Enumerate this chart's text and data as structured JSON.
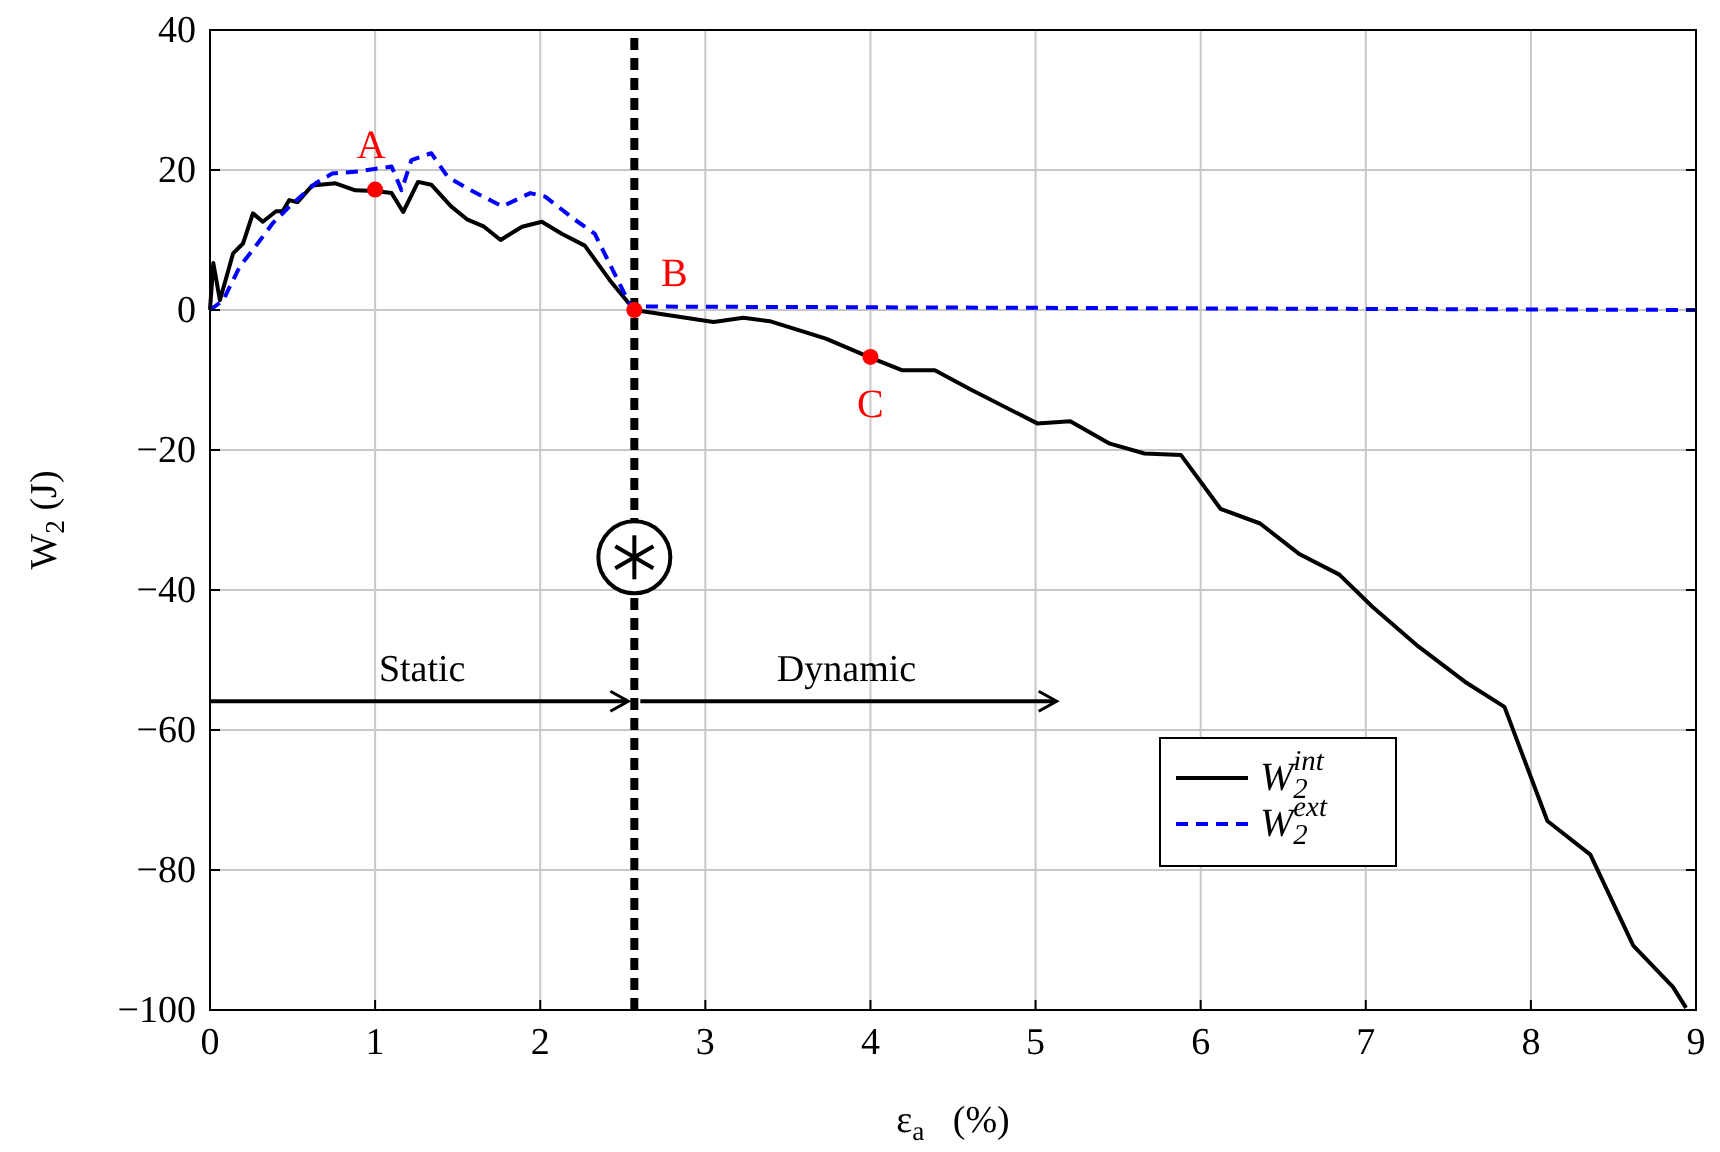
{
  "chart_data": {
    "type": "line",
    "xlabel": "ε$_{a}$   (%)",
    "ylabel": "W$_{2}$ (J)",
    "xlim": [
      0,
      9
    ],
    "xticks": [
      0,
      1,
      2,
      3,
      4,
      5,
      6,
      7,
      8,
      9
    ],
    "ylim": [
      -100,
      40
    ],
    "yticks": [
      {
        "value": -100,
        "label": "−100"
      },
      {
        "value": -80,
        "label": "−80"
      },
      {
        "value": -60,
        "label": "−60"
      },
      {
        "value": -40,
        "label": "−40"
      },
      {
        "value": -20,
        "label": "−20"
      },
      0,
      20,
      40
    ],
    "grid": true,
    "legend": "bottom right",
    "marker": "none",
    "series": [
      {
        "name": "W$_{2}$$^{int}$",
        "color": "#000000",
        "line_style": "solid",
        "x": [
          0,
          0.02,
          0.06,
          0.14,
          0.2,
          0.26,
          0.32,
          0.4,
          0.44,
          0.48,
          0.53,
          0.62,
          0.76,
          0.88,
          1.0,
          1.1,
          1.17,
          1.26,
          1.34,
          1.46,
          1.56,
          1.66,
          1.76,
          1.89,
          2.01,
          2.13,
          2.27,
          2.42,
          2.57,
          3.05,
          3.23,
          3.39,
          3.73,
          4.0,
          4.19,
          4.39,
          4.61,
          5.01,
          5.21,
          5.45,
          5.66,
          5.88,
          6.12,
          6.36,
          6.6,
          6.84,
          7.04,
          7.32,
          7.6,
          7.84,
          8.1,
          8.36,
          8.62,
          8.86,
          8.94
        ],
        "values": [
          0,
          6.7,
          1.4,
          8.1,
          9.5,
          13.8,
          12.6,
          14.1,
          14.1,
          15.7,
          15.4,
          17.8,
          18.1,
          17.1,
          17,
          16.7,
          14,
          18.3,
          17.9,
          14.8,
          12.9,
          11.9,
          10,
          11.9,
          12.6,
          10.9,
          9.2,
          4.3,
          0,
          -1.7,
          -1.1,
          -1.6,
          -4.1,
          -6.8,
          -8.6,
          -8.6,
          -11.4,
          -16.2,
          -15.9,
          -19.1,
          -20.5,
          -20.7,
          -28.4,
          -30.5,
          -34.9,
          -37.8,
          -42.4,
          -48.1,
          -53.1,
          -56.7,
          -73,
          -77.8,
          -90.8,
          -96.7,
          -99.7
        ]
      },
      {
        "name": "W$_{2}$$^{ext}$",
        "color": "#0000ff",
        "line_style": "dashed",
        "x": [
          0,
          0.08,
          0.18,
          0.26,
          0.38,
          0.5,
          0.64,
          0.74,
          0.9,
          1.1,
          1.16,
          1.22,
          1.34,
          1.44,
          1.58,
          1.77,
          1.94,
          2.03,
          2.21,
          2.33,
          2.45,
          2.55,
          9
        ],
        "values": [
          0,
          1.4,
          6.2,
          8.6,
          12.4,
          15.2,
          18.1,
          19.5,
          19.8,
          20.5,
          17.1,
          21.4,
          22.4,
          19,
          17.1,
          14.8,
          16.7,
          16.2,
          12.9,
          10.9,
          5.2,
          0.5,
          0
        ]
      },
      {
        "type": "scatter",
        "color": "#ff0000",
        "marker": "circle",
        "x": [
          1,
          2.57,
          4
        ],
        "values": [
          17.2,
          0,
          -6.7
        ]
      }
    ],
    "ref_lines": [
      {
        "axis": "x",
        "value": 2.57,
        "color": "#000000",
        "line_style": "dashed"
      }
    ],
    "annotations": [
      {
        "text": "A",
        "x": 1,
        "y": 17.2
      },
      {
        "text": "B",
        "x": 2.57,
        "y": 0
      },
      {
        "text": "C",
        "x": 4,
        "y": -6.7
      },
      "Static",
      "Dynamic"
    ]
  }
}
